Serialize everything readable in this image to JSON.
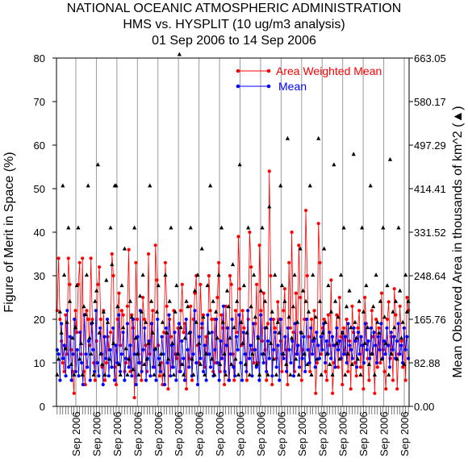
{
  "chart_data": {
    "type": "line",
    "title": "NATIONAL OCEANIC ATMOSPHERIC ADMINISTRATION",
    "subtitle": "HMS vs. HYSPLIT (10 ug/m3 analysis)",
    "date_range": "01 Sep 2006 to 14 Sep 2006",
    "ylabel": "Figure of Merit in Space (%)",
    "y2label": "Mean Observed Area in thousands of km^2 (▲)",
    "ylim": [
      0,
      80
    ],
    "y2lim": [
      0,
      663.05
    ],
    "yticks": [
      "0",
      "10",
      "20",
      "30",
      "40",
      "50",
      "60",
      "70",
      "80"
    ],
    "y2ticks": [
      "0.00",
      "82.88",
      "165.76",
      "248.64",
      "331.52",
      "414.41",
      "497.29",
      "580.17",
      "663.05"
    ],
    "x_tick_label": "Sep 2006",
    "x_tick_count": 17,
    "legend_position": "top-right",
    "series": [
      {
        "name": "Area Weighted Mean",
        "color": "#ff0000",
        "marker": "circle",
        "values": [
          22,
          34,
          20,
          15,
          10,
          8,
          21,
          12,
          34,
          28,
          13,
          8,
          3,
          22,
          17,
          28,
          33,
          12,
          34,
          8,
          5,
          22,
          20,
          14,
          34,
          20,
          10,
          6,
          15,
          28,
          32,
          20,
          9,
          22,
          6,
          10,
          16,
          13,
          17,
          35,
          30,
          9,
          5,
          20,
          26,
          14,
          22,
          21,
          8,
          10,
          23,
          36,
          8,
          21,
          18,
          2,
          33,
          20,
          12,
          10,
          6,
          25,
          20,
          14,
          8,
          35,
          12,
          19,
          22,
          9,
          37,
          29,
          14,
          7,
          10,
          5,
          17,
          33,
          23,
          4,
          20,
          16,
          9,
          22,
          12,
          11,
          18,
          8,
          22,
          28,
          17,
          19,
          4,
          13,
          11,
          23,
          6,
          20,
          26,
          30,
          14,
          10,
          28,
          18,
          21,
          9,
          16,
          12,
          30,
          22,
          20,
          8,
          20,
          10,
          25,
          33,
          8,
          21,
          18,
          5,
          23,
          18,
          6,
          30,
          28,
          12,
          6,
          22,
          17,
          39,
          27,
          14,
          22,
          18,
          12,
          6,
          20,
          40,
          32,
          13,
          10,
          19,
          28,
          10,
          37,
          22,
          15,
          26,
          13,
          6,
          19,
          54,
          30,
          5,
          20,
          18,
          11,
          24,
          20,
          15,
          8,
          22,
          27,
          13,
          5,
          33,
          18,
          40,
          17,
          8,
          26,
          12,
          37,
          25,
          6,
          13,
          20,
          45,
          30,
          16,
          8,
          20,
          15,
          22,
          3,
          10,
          42,
          33,
          12,
          18,
          20,
          8,
          6,
          21,
          14,
          29,
          3,
          10,
          14,
          21,
          9,
          25,
          16,
          5,
          18,
          12,
          20,
          8,
          15,
          4,
          23,
          17,
          10,
          7,
          18,
          22,
          9,
          14,
          4,
          25,
          19,
          11,
          6,
          12,
          22,
          16,
          3,
          20,
          9,
          18,
          10,
          26,
          13,
          8,
          4,
          20,
          24,
          11,
          16,
          6,
          27,
          21,
          4,
          12,
          23,
          15,
          9,
          18,
          6,
          25,
          22
        ]
      },
      {
        "name": "Mean",
        "color": "#0000ff",
        "marker": "circle",
        "values": [
          13,
          12,
          6,
          19,
          11,
          14,
          7,
          22,
          9,
          16,
          6,
          12,
          20,
          8,
          13,
          7,
          17,
          10,
          5,
          21,
          12,
          9,
          15,
          6,
          19,
          13,
          8,
          22,
          10,
          7,
          18,
          12,
          5,
          16,
          11,
          20,
          7,
          13,
          9,
          18,
          6,
          14,
          10,
          21,
          8,
          12,
          17,
          6,
          11,
          19,
          9,
          14,
          7,
          20,
          12,
          5,
          16,
          10,
          22,
          8,
          13,
          18,
          6,
          11,
          15,
          7,
          19,
          9,
          13,
          6,
          20,
          11,
          8,
          16,
          12,
          5,
          18,
          10,
          21,
          7,
          14,
          9,
          17,
          6,
          12,
          19,
          8,
          15,
          11,
          6,
          20,
          13,
          9,
          17,
          7,
          12,
          22,
          10,
          5,
          16,
          11,
          19,
          8,
          14,
          6,
          21,
          12,
          9,
          17,
          7,
          13,
          20,
          10,
          6,
          15,
          11,
          23,
          8,
          14,
          18,
          6,
          12,
          20,
          9,
          7,
          16,
          13,
          21,
          10,
          6,
          17,
          12,
          8,
          22,
          11,
          14,
          7,
          19,
          13,
          9,
          16,
          6,
          21,
          12,
          10,
          18,
          8,
          15,
          11,
          20,
          7,
          13,
          17,
          9,
          14,
          6,
          20,
          12,
          11,
          16,
          8,
          18,
          13,
          10,
          15,
          7,
          19,
          12,
          14,
          9,
          17,
          11,
          16,
          8,
          20,
          13,
          10,
          18,
          12,
          15,
          9,
          17,
          14,
          11,
          16,
          13,
          19,
          10,
          15,
          12,
          17,
          11,
          16,
          14,
          9,
          18,
          13,
          15,
          11,
          17,
          12,
          16,
          10,
          19,
          14,
          13,
          11,
          18,
          15,
          9,
          17,
          12,
          16,
          14,
          10,
          19,
          13,
          15,
          11,
          18,
          12,
          17,
          14,
          10,
          16,
          13,
          19,
          11,
          15,
          12,
          18,
          14,
          9,
          17,
          13,
          16,
          11,
          15,
          19,
          12,
          14,
          10,
          18,
          13,
          16,
          11
        ]
      },
      {
        "name": "Mean Observed Area",
        "axis": "right",
        "color": "#000000",
        "marker": "triangle",
        "values": [
          60,
          90,
          180,
          140,
          420,
          250,
          110,
          160,
          340,
          200,
          80,
          130,
          60,
          150,
          230,
          340,
          90,
          120,
          60,
          190,
          175,
          250,
          420,
          130,
          100,
          160,
          60,
          200,
          220,
          460,
          140,
          100,
          80,
          180,
          60,
          240,
          160,
          90,
          340,
          270,
          120,
          420,
          420,
          190,
          80,
          60,
          230,
          150,
          300,
          110,
          60,
          90,
          200,
          170,
          70,
          340,
          130,
          100,
          60,
          210,
          180,
          250,
          80,
          160,
          90,
          120,
          420,
          200,
          140,
          60,
          110,
          180,
          230,
          80,
          100,
          160,
          60,
          250,
          140,
          90,
          200,
          340,
          120,
          60,
          180,
          230,
          100,
          670,
          150,
          80,
          60,
          130,
          200,
          190,
          140,
          340,
          90,
          60,
          220,
          160,
          250,
          120,
          80,
          300,
          170,
          60,
          100,
          230,
          140,
          420,
          90,
          200,
          60,
          180,
          130,
          250,
          80,
          340,
          160,
          100,
          60,
          220,
          190,
          130,
          80,
          270,
          150,
          90,
          200,
          60,
          460,
          160,
          120,
          230,
          80,
          140,
          340,
          60,
          190,
          100,
          250,
          170,
          80,
          130,
          60,
          220,
          340,
          100,
          200,
          150,
          60,
          380,
          120,
          180,
          90,
          250,
          60,
          160,
          140,
          420,
          230,
          100,
          200,
          80,
          510,
          170,
          60,
          130,
          190,
          250,
          90,
          160,
          60,
          300,
          140,
          220,
          100,
          200,
          80,
          180,
          420,
          60,
          250,
          130,
          170,
          90,
          510,
          200,
          60,
          140,
          300,
          160,
          100,
          230,
          80,
          180,
          60,
          460,
          200,
          120,
          170,
          90,
          250,
          140,
          340,
          60,
          190,
          100,
          220,
          150,
          80,
          480,
          160,
          130,
          90,
          200,
          60,
          340,
          180,
          120,
          230,
          150,
          80,
          420,
          100,
          190,
          60,
          250,
          160,
          140,
          200,
          90,
          340,
          170,
          120,
          230,
          60,
          470,
          100,
          180,
          150,
          200,
          90,
          340,
          220,
          130,
          160,
          80,
          250,
          180,
          200
        ]
      }
    ]
  }
}
